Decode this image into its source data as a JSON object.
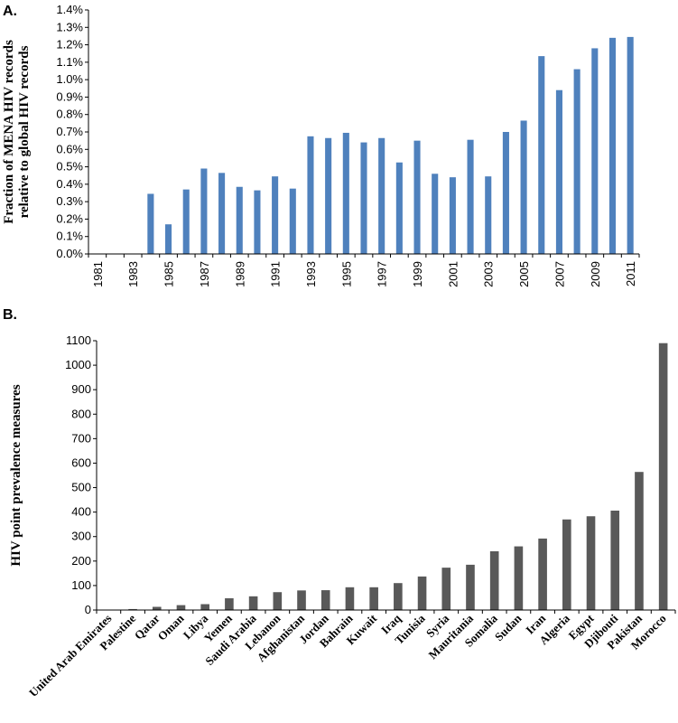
{
  "chart_data": [
    {
      "type": "bar",
      "panel_label": "A.",
      "title": "",
      "ylabel_lines": [
        "Fraction of MENA HIV records",
        "relative to global HIV records"
      ],
      "xlabel": "",
      "ylim": [
        0,
        0.014
      ],
      "ytick_step": 0.001,
      "ytick_format": "percent1",
      "bar_color": "#4F81BD",
      "categories": [
        "1981",
        "1982",
        "1983",
        "1984",
        "1985",
        "1986",
        "1987",
        "1988",
        "1989",
        "1990",
        "1991",
        "1992",
        "1993",
        "1994",
        "1995",
        "1996",
        "1997",
        "1998",
        "1999",
        "2000",
        "2001",
        "2002",
        "2003",
        "2004",
        "2005",
        "2006",
        "2007",
        "2008",
        "2009",
        "2010",
        "2011"
      ],
      "category_tick_labels": [
        "1981",
        "",
        "1983",
        "",
        "1985",
        "",
        "1987",
        "",
        "1989",
        "",
        "1991",
        "",
        "1993",
        "",
        "1995",
        "",
        "1997",
        "",
        "1999",
        "",
        "2001",
        "",
        "2003",
        "",
        "2005",
        "",
        "2007",
        "",
        "2009",
        "",
        "2011"
      ],
      "values": [
        0,
        0,
        0,
        0.00345,
        0.0017,
        0.0037,
        0.0049,
        0.00465,
        0.00385,
        0.00365,
        0.00445,
        0.00375,
        0.00675,
        0.00665,
        0.00695,
        0.0064,
        0.00665,
        0.00525,
        0.0065,
        0.0046,
        0.0044,
        0.00655,
        0.00445,
        0.007,
        0.00765,
        0.01135,
        0.0094,
        0.0106,
        0.0118,
        0.0124,
        0.01245
      ]
    },
    {
      "type": "bar",
      "panel_label": "B.",
      "title": "",
      "ylabel_lines": [
        "HIV point prevalence measures"
      ],
      "xlabel": "",
      "ylim": [
        0,
        1100
      ],
      "ytick_step": 100,
      "ytick_format": "integer",
      "bar_color": "#595959",
      "categories": [
        "United Arab Emirates",
        "Palestine",
        "Qatar",
        "Oman",
        "Libya",
        "Yemen",
        "Saudi Arabia",
        "Lebanon",
        "Afghanistan",
        "Jordan",
        "Bahrain",
        "Kuwait",
        "Iraq",
        "Tunisia",
        "Syria",
        "Mauritania",
        "Somalia",
        "Sudan",
        "Iran",
        "Algeria",
        "Egypt",
        "Djibouti",
        "Pakistan",
        "Morocco"
      ],
      "values": [
        1,
        4,
        13,
        20,
        24,
        48,
        56,
        73,
        80,
        81,
        93,
        93,
        110,
        137,
        173,
        185,
        240,
        260,
        292,
        370,
        383,
        406,
        564,
        1090
      ]
    }
  ]
}
